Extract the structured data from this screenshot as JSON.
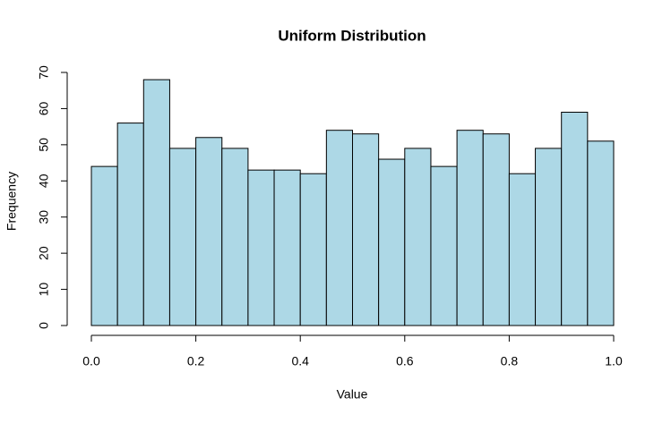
{
  "chart_data": {
    "type": "histogram",
    "title": "Uniform Distribution",
    "x_label": "Value",
    "y_label": "Frequency",
    "bins": [
      0,
      0.05,
      0.1,
      0.15,
      0.2,
      0.25,
      0.3,
      0.35,
      0.4,
      0.45,
      0.5,
      0.55,
      0.6,
      0.65,
      0.7,
      0.75,
      0.8,
      0.85,
      0.9,
      0.95,
      1
    ],
    "counts": [
      44,
      56,
      68,
      49,
      52,
      49,
      43,
      43,
      42,
      54,
      53,
      46,
      49,
      44,
      54,
      53,
      42,
      49,
      59,
      51
    ],
    "color": "#add8e6",
    "xlim": [
      0,
      1
    ],
    "xticks": [
      {
        "value": 0,
        "label": "0.0"
      },
      0.2,
      0.4,
      0.6,
      0.8,
      {
        "value": 1,
        "label": "1.0"
      }
    ],
    "ylim": [
      0,
      70
    ],
    "yticks": [
      0,
      10,
      20,
      30,
      40,
      50,
      60,
      70
    ]
  }
}
